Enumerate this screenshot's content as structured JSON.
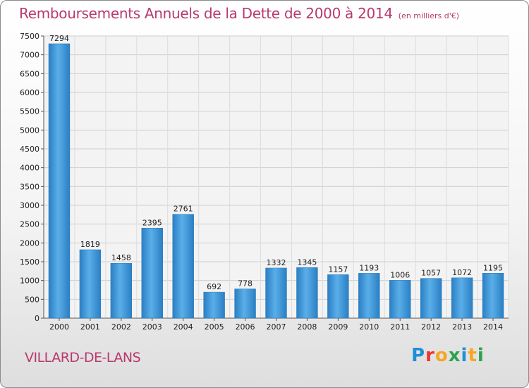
{
  "chart_data": {
    "type": "bar",
    "title": "Remboursements Annuels de la Dette de 2000 à 2014",
    "subtitle": "(en milliers d'€)",
    "categories": [
      "2000",
      "2001",
      "2002",
      "2003",
      "2004",
      "2005",
      "2006",
      "2007",
      "2008",
      "2009",
      "2010",
      "2011",
      "2012",
      "2013",
      "2014"
    ],
    "values": [
      7294,
      1819,
      1458,
      2395,
      2761,
      692,
      778,
      1332,
      1345,
      1157,
      1193,
      1006,
      1057,
      1072,
      1195
    ],
    "ylim": [
      0,
      7500
    ],
    "yticks": [
      0,
      500,
      1000,
      1500,
      2000,
      2500,
      3000,
      3500,
      4000,
      4500,
      5000,
      5500,
      6000,
      6500,
      7000,
      7500
    ],
    "grid": true,
    "xlabel": "",
    "ylabel": "",
    "bar_color": "#2e86cc"
  },
  "footer": {
    "commune": "VILLARD-DE-LANS",
    "logo_letters": [
      {
        "char": "P",
        "color": "#1f8fd6"
      },
      {
        "char": "r",
        "color": "#e8372c"
      },
      {
        "char": "o",
        "color": "#f5a623"
      },
      {
        "char": "x",
        "color": "#2ca24f"
      },
      {
        "char": "i",
        "color": "#1f8fd6"
      },
      {
        "char": "t",
        "color": "#f5a623"
      },
      {
        "char": "i",
        "color": "#2ca24f"
      }
    ]
  },
  "colors": {
    "accent": "#b83a6d"
  }
}
